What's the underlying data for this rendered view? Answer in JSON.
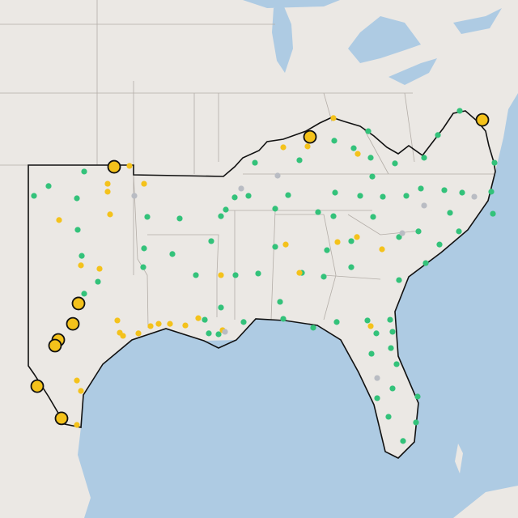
{
  "map": {
    "point_groups": [
      {
        "color": "#33c27a",
        "points": [
          [
            -99.8,
            36.93
          ],
          [
            -102.0,
            36.29
          ],
          [
            -100.25,
            35.75
          ],
          [
            -102.9,
            35.86
          ],
          [
            -100.2,
            34.36
          ],
          [
            -95.9,
            34.93
          ],
          [
            -93.9,
            34.86
          ],
          [
            -96.1,
            33.54
          ],
          [
            -94.35,
            33.29
          ],
          [
            -99.95,
            33.21
          ],
          [
            -98.95,
            32.07
          ],
          [
            -99.8,
            31.54
          ],
          [
            -96.15,
            32.71
          ],
          [
            -91.05,
            35.25
          ],
          [
            -91.35,
            34.96
          ],
          [
            -91.95,
            33.86
          ],
          [
            -92.9,
            32.36
          ],
          [
            -90.45,
            32.36
          ],
          [
            -89.05,
            32.43
          ],
          [
            -91.35,
            30.93
          ],
          [
            -92.35,
            30.39
          ],
          [
            -89.95,
            30.29
          ],
          [
            -87.5,
            30.43
          ],
          [
            -85.65,
            30.04
          ],
          [
            -84.2,
            30.29
          ],
          [
            -82.3,
            30.36
          ],
          [
            -80.9,
            30.39
          ],
          [
            -80.75,
            29.86
          ],
          [
            -81.75,
            29.79
          ],
          [
            -80.85,
            29.14
          ],
          [
            -82.05,
            28.89
          ],
          [
            -80.5,
            28.43
          ],
          [
            -80.75,
            27.36
          ],
          [
            -81.7,
            26.93
          ],
          [
            -79.2,
            27.0
          ],
          [
            -81.0,
            26.11
          ],
          [
            -79.3,
            25.86
          ],
          [
            -80.1,
            25.04
          ],
          [
            -88.0,
            33.61
          ],
          [
            -86.35,
            32.46
          ],
          [
            -87.7,
            31.18
          ],
          [
            -85.0,
            32.29
          ],
          [
            -84.8,
            33.46
          ],
          [
            -83.3,
            32.71
          ],
          [
            -83.3,
            33.86
          ],
          [
            -81.95,
            34.93
          ],
          [
            -80.35,
            34.04
          ],
          [
            -79.15,
            34.29
          ],
          [
            -79.0,
            36.18
          ],
          [
            -77.55,
            36.11
          ],
          [
            -76.45,
            36.0
          ],
          [
            -76.65,
            34.29
          ],
          [
            -77.85,
            33.71
          ],
          [
            -78.7,
            32.89
          ],
          [
            -80.35,
            32.14
          ],
          [
            -85.35,
            35.14
          ],
          [
            -84.3,
            36.0
          ],
          [
            -82.75,
            35.86
          ],
          [
            -81.35,
            35.82
          ],
          [
            -79.9,
            35.86
          ],
          [
            -77.2,
            35.11
          ],
          [
            -74.55,
            35.07
          ],
          [
            -74.65,
            36.04
          ],
          [
            -74.45,
            37.32
          ],
          [
            -76.6,
            39.61
          ],
          [
            -77.95,
            38.54
          ],
          [
            -78.8,
            37.54
          ],
          [
            -80.6,
            37.29
          ],
          [
            -82.1,
            37.54
          ],
          [
            -82.0,
            36.71
          ],
          [
            -83.15,
            37.96
          ],
          [
            -84.35,
            38.29
          ],
          [
            -86.5,
            37.43
          ],
          [
            -87.2,
            35.89
          ],
          [
            -89.25,
            37.32
          ],
          [
            -90.5,
            35.79
          ],
          [
            -89.65,
            35.86
          ],
          [
            -84.4,
            34.96
          ],
          [
            -82.25,
            38.71
          ],
          [
            -88.0,
            35.29
          ],
          [
            -91.5,
            29.75
          ],
          [
            -92.1,
            29.79
          ]
        ]
      },
      {
        "color": "#f4c21b",
        "points": [
          [
            -97.0,
            37.18
          ],
          [
            -98.35,
            36.39
          ],
          [
            -98.35,
            36.04
          ],
          [
            -96.1,
            36.39
          ],
          [
            -101.35,
            34.79
          ],
          [
            -98.2,
            35.04
          ],
          [
            -98.85,
            32.64
          ],
          [
            -100.0,
            32.79
          ],
          [
            -97.75,
            30.36
          ],
          [
            -97.6,
            29.82
          ],
          [
            -97.4,
            29.68
          ],
          [
            -96.45,
            29.79
          ],
          [
            -95.7,
            30.11
          ],
          [
            -95.2,
            30.21
          ],
          [
            -94.5,
            30.21
          ],
          [
            -93.55,
            30.14
          ],
          [
            -92.75,
            30.46
          ],
          [
            -91.25,
            29.93
          ],
          [
            -91.35,
            32.36
          ],
          [
            -87.35,
            33.71
          ],
          [
            -86.5,
            32.46
          ],
          [
            -84.15,
            33.82
          ],
          [
            -82.95,
            34.04
          ],
          [
            -81.4,
            33.5
          ],
          [
            -82.1,
            30.11
          ],
          [
            -87.5,
            38.0
          ],
          [
            -86.0,
            38.04
          ],
          [
            -84.4,
            39.29
          ],
          [
            -100.25,
            27.71
          ],
          [
            -100.0,
            27.25
          ],
          [
            -100.25,
            25.75
          ],
          [
            -82.9,
            37.71
          ]
        ]
      },
      {
        "color": "#b9bcc3",
        "points": [
          [
            -96.7,
            35.86
          ],
          [
            -90.1,
            36.18
          ],
          [
            -87.85,
            36.75
          ],
          [
            -78.8,
            35.43
          ],
          [
            -75.7,
            35.82
          ],
          [
            -80.15,
            34.21
          ],
          [
            -81.7,
            27.82
          ],
          [
            -91.1,
            29.86
          ]
        ]
      },
      {
        "color": "#f4c21b",
        "stroke": "#111111",
        "points": [
          [
            -97.95,
            37.14
          ],
          [
            -85.85,
            38.46
          ],
          [
            -75.2,
            39.21
          ],
          [
            -100.15,
            31.11
          ],
          [
            -100.5,
            30.21
          ],
          [
            -101.4,
            29.5
          ],
          [
            -101.6,
            29.25
          ],
          [
            -102.7,
            27.46
          ],
          [
            -101.2,
            26.04
          ]
        ]
      }
    ]
  }
}
